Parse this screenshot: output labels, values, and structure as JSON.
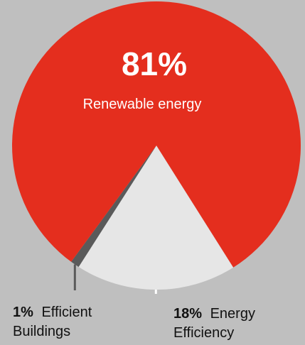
{
  "chart_data": {
    "type": "pie",
    "title": "",
    "slices": [
      {
        "label": "Renewable energy",
        "value": 81,
        "value_label": "81%",
        "color": "#e42e1e"
      },
      {
        "label": "Energy Efficiency",
        "value": 18,
        "value_label": "18%",
        "color": "#e6e6e6",
        "label_lines": [
          "Energy",
          "Efficiency"
        ]
      },
      {
        "label": "Efficient Buildings",
        "value": 1,
        "value_label": "1%",
        "color": "#5a5a5a",
        "label_lines": [
          "Efficient",
          "Buildings"
        ]
      }
    ],
    "background": "#bfbfbf"
  }
}
